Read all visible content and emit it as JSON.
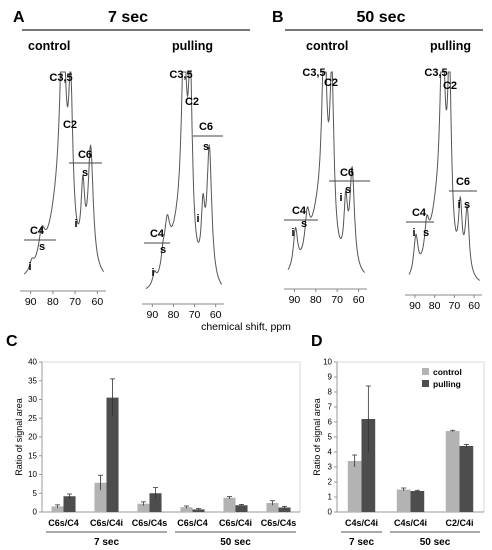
{
  "panels": {
    "A": {
      "letter": "A",
      "title": "7 sec",
      "spectra": [
        {
          "condition": "control",
          "tick_labels": [
            "90",
            "80",
            "70",
            "60"
          ],
          "peak_labels": {
            "c35": "C3,5",
            "c2": "C2",
            "c6": "C6",
            "c6s": "s",
            "c6i": "i",
            "c4": "C4",
            "c4s": "s",
            "c4i": "i"
          }
        },
        {
          "condition": "pulling",
          "tick_labels": [
            "90",
            "80",
            "70",
            "60"
          ],
          "peak_labels": {
            "c35": "C3,5",
            "c2": "C2",
            "c6": "C6",
            "c6s": "s",
            "c6i": "i",
            "c4": "C4",
            "c4s": "s",
            "c4i": "i"
          }
        }
      ]
    },
    "B": {
      "letter": "B",
      "title": "50 sec",
      "spectra": [
        {
          "condition": "control",
          "tick_labels": [
            "90",
            "80",
            "70",
            "60"
          ],
          "peak_labels": {
            "c35": "C3,5",
            "c2": "C2",
            "c6": "C6",
            "c6s": "s",
            "c6i": "i",
            "c4": "C4",
            "c4s": "s",
            "c4i": "i"
          }
        },
        {
          "condition": "pulling",
          "tick_labels": [
            "90",
            "80",
            "70",
            "60"
          ],
          "peak_labels": {
            "c35": "C3,5",
            "c2": "C2",
            "c6": "C6",
            "c6s": "s",
            "c6i": "i",
            "c4": "C4",
            "c4s": "s",
            "c4i": "i"
          }
        }
      ]
    },
    "shared_xlabel": "chemical shift, ppm",
    "C": {
      "letter": "C"
    },
    "D": {
      "letter": "D"
    }
  },
  "colors": {
    "control": "#b3b3b3",
    "pulling": "#4d4d4d",
    "axis": "#888888",
    "trace": "#555555"
  },
  "chart_data": [
    {
      "panel": "C",
      "type": "bar",
      "ylabel": "Ratio of signal area",
      "ylim": [
        0,
        40
      ],
      "yticks": [
        0,
        5,
        10,
        15,
        20,
        25,
        30,
        35,
        40
      ],
      "categories": [
        "C6s/C4",
        "C6s/C4i",
        "C6s/C4s",
        "C6s/C4",
        "C6s/C4i",
        "C6s/C4s"
      ],
      "groups": [
        {
          "label": "7 sec",
          "categories": 3
        },
        {
          "label": "50 sec",
          "categories": 3
        }
      ],
      "series": [
        {
          "key": "control",
          "values": [
            1.5,
            7.8,
            2.2,
            1.3,
            3.8,
            2.4
          ],
          "errors": [
            0.4,
            2.0,
            0.5,
            0.3,
            0.3,
            0.6
          ]
        },
        {
          "key": "pulling",
          "values": [
            4.2,
            30.5,
            5.0,
            0.7,
            1.8,
            1.2
          ],
          "errors": [
            0.6,
            5.0,
            1.5,
            0.2,
            0.2,
            0.3
          ]
        }
      ]
    },
    {
      "panel": "D",
      "type": "bar",
      "ylabel": "Ratio of signal area",
      "ylim": [
        0,
        10
      ],
      "yticks": [
        0,
        1,
        2,
        3,
        4,
        5,
        6,
        7,
        8,
        9,
        10
      ],
      "categories": [
        "C4s/C4i",
        "C4s/C4i",
        "C2/C4i"
      ],
      "groups": [
        {
          "label": "7 sec",
          "categories": 1
        },
        {
          "label": "50 sec",
          "categories": 2
        }
      ],
      "legend": {
        "position": "top-right",
        "entries": [
          {
            "key": "control",
            "label": "control"
          },
          {
            "key": "pulling",
            "label": "pulling"
          }
        ]
      },
      "series": [
        {
          "key": "control",
          "values": [
            3.4,
            1.5,
            5.4
          ],
          "errors": [
            0.4,
            0.1,
            0.05
          ]
        },
        {
          "key": "pulling",
          "values": [
            6.2,
            1.4,
            4.4
          ],
          "errors": [
            2.2,
            0.05,
            0.1
          ]
        }
      ]
    }
  ]
}
